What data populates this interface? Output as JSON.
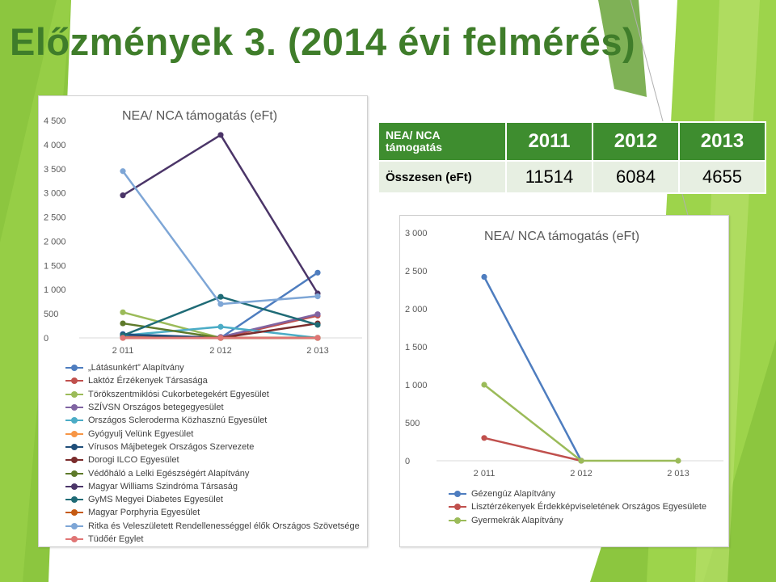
{
  "slide": {
    "title": "Előzmények 3. (2014 évi felmérés)",
    "theme_colors": {
      "title": "#3f7d2a",
      "light_green": "#9dd44b",
      "dark_green": "#3e8d2f"
    }
  },
  "summary_table": {
    "header": {
      "label": "NEA/ NCA támogatás",
      "years": [
        "2011",
        "2012",
        "2013"
      ]
    },
    "row": {
      "label": "Összesen (eFt)",
      "values": [
        "11514",
        "6084",
        "4655"
      ]
    }
  },
  "chart_data": [
    {
      "type": "line",
      "title": "NEA/ NCA támogatás (eFt)",
      "x": [
        "2 011",
        "2 012",
        "2 013"
      ],
      "ylim": [
        0,
        4500
      ],
      "yticks": [
        "4 500",
        "4 000",
        "3 500",
        "3 000",
        "2 500",
        "2 000",
        "1 500",
        "1 000",
        "500",
        "0"
      ],
      "ytick_values": [
        4500,
        4000,
        3500,
        3000,
        2500,
        2000,
        1500,
        1000,
        500,
        0
      ],
      "grid": false,
      "legend": "bottom",
      "series": [
        {
          "name": "„Látásunkért” Alapítvány",
          "color": "#4e7dbf",
          "values": [
            80,
            0,
            1350
          ]
        },
        {
          "name": "Laktóz Érzékenyek Társasága",
          "color": "#c0504d",
          "values": [
            30,
            0,
            460
          ]
        },
        {
          "name": "Törökszentmiklósi Cukorbetegekért Egyesület",
          "color": "#9bbb59",
          "values": [
            530,
            0,
            0
          ]
        },
        {
          "name": "SZÍVSN Országos betegegyesület",
          "color": "#8064a2",
          "values": [
            20,
            20,
            490
          ]
        },
        {
          "name": "Országos Scleroderma Közhasznú Egyesület",
          "color": "#4bacc6",
          "values": [
            50,
            230,
            0
          ]
        },
        {
          "name": "Gyógyulj Velünk Egyesület",
          "color": "#f79646",
          "values": [
            10,
            0,
            0
          ]
        },
        {
          "name": "Vírusos Májbetegek Országos Szervezete",
          "color": "#1f4e79",
          "values": [
            70,
            0,
            0
          ]
        },
        {
          "name": "Dorogi ILCO Egyesület",
          "color": "#7b2c2c",
          "values": [
            0,
            0,
            300
          ]
        },
        {
          "name": "Védőháló a Lelki Egészségért Alapítvány",
          "color": "#5e7a2a",
          "values": [
            300,
            0,
            0
          ]
        },
        {
          "name": "Magyar Williams Szindróma Társaság",
          "color": "#4b3568",
          "values": [
            2950,
            4200,
            920
          ]
        },
        {
          "name": "GyMS Megyei Diabetes Egyesület",
          "color": "#1f6b76",
          "values": [
            50,
            850,
            270
          ]
        },
        {
          "name": "Magyar Porphyria Egyesület",
          "color": "#c55a11",
          "values": [
            0,
            0,
            0
          ]
        },
        {
          "name": "Ritka és Veleszületett Rendellenességgel élők Országos Szövetsége",
          "color": "#7ea6d6",
          "values": [
            3450,
            700,
            860
          ]
        },
        {
          "name": "Tüdőér Egylet",
          "color": "#e07575",
          "values": [
            0,
            0,
            0
          ]
        }
      ]
    },
    {
      "type": "line",
      "title": "NEA/ NCA támogatás (eFt)",
      "x": [
        "2 011",
        "2 012",
        "2 013"
      ],
      "ylim": [
        0,
        3000
      ],
      "yticks": [
        "3 000",
        "2 500",
        "2 000",
        "1 500",
        "1 000",
        "500",
        "0"
      ],
      "ytick_values": [
        3000,
        2500,
        2000,
        1500,
        1000,
        500,
        0
      ],
      "grid": false,
      "legend": "bottom",
      "series": [
        {
          "name": "Gézengúz Alapítvány",
          "color": "#4e7dbf",
          "values": [
            2420,
            0,
            null
          ]
        },
        {
          "name": "Lisztérzékenyek Érdekképviseletének Országos Egyesülete",
          "color": "#c0504d",
          "values": [
            300,
            0,
            null
          ]
        },
        {
          "name": "Gyermekrák Alapítvány",
          "color": "#9bbb59",
          "values": [
            1000,
            0,
            0
          ]
        }
      ]
    }
  ]
}
